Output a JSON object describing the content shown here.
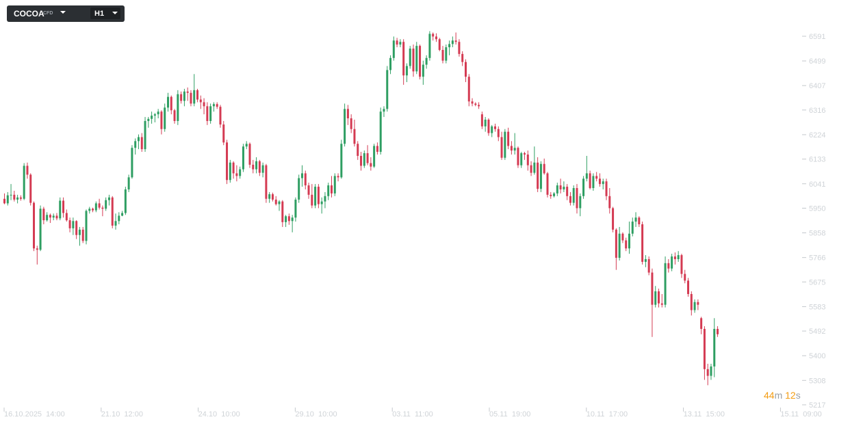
{
  "toolbar": {
    "symbol": "COCOA",
    "symbol_tag": "CFD",
    "timeframe": "H1"
  },
  "timer": {
    "minutes": "44",
    "min_unit": "m",
    "seconds": "12",
    "sec_unit": "s"
  },
  "colors": {
    "up": "#2e9e62",
    "down": "#d43a52",
    "axis_text": "#cfd3d7",
    "timer": "#f39c12"
  },
  "chart_data": {
    "type": "candlestick",
    "title": "",
    "y_ticks": [
      6591,
      6499,
      6407,
      6316,
      6224,
      6133,
      6041,
      5950,
      5858,
      5766,
      5675,
      5583,
      5492,
      5400,
      5308,
      5217
    ],
    "ylim": [
      5217,
      6591
    ],
    "x_ticks": [
      "16.10.2025  14:00",
      "21.10  12:00",
      "24.10  10:00",
      "29.10  10:00",
      "03.11  11:00",
      "05.11  19:00",
      "10.11  17:00",
      "13.11  15:00",
      "15.11  09:00"
    ],
    "grid": false,
    "candles": [
      [
        5985,
        6005,
        5965,
        5968
      ],
      [
        5968,
        6010,
        5960,
        5998
      ],
      [
        5998,
        6040,
        5980,
        6000
      ],
      [
        6000,
        6015,
        5975,
        5982
      ],
      [
        5982,
        6000,
        5968,
        5990
      ],
      [
        5990,
        5998,
        5978,
        5985
      ],
      [
        5985,
        6118,
        5980,
        6108
      ],
      [
        6108,
        6120,
        6060,
        6075
      ],
      [
        6075,
        6080,
        5960,
        5970
      ],
      [
        5970,
        5975,
        5790,
        5800
      ],
      [
        5800,
        5810,
        5740,
        5795
      ],
      [
        5795,
        5960,
        5790,
        5948
      ],
      [
        5948,
        5955,
        5890,
        5905
      ],
      [
        5905,
        5935,
        5900,
        5925
      ],
      [
        5925,
        5930,
        5895,
        5915
      ],
      [
        5915,
        5930,
        5905,
        5922
      ],
      [
        5922,
        5932,
        5905,
        5912
      ],
      [
        5912,
        5990,
        5905,
        5978
      ],
      [
        5978,
        5990,
        5915,
        5932
      ],
      [
        5932,
        5945,
        5900,
        5905
      ],
      [
        5905,
        5915,
        5860,
        5875
      ],
      [
        5875,
        5915,
        5850,
        5902
      ],
      [
        5902,
        5905,
        5835,
        5850
      ],
      [
        5850,
        5880,
        5810,
        5870
      ],
      [
        5870,
        5880,
        5820,
        5828
      ],
      [
        5828,
        5945,
        5815,
        5940
      ],
      [
        5940,
        5955,
        5930,
        5948
      ],
      [
        5948,
        5952,
        5935,
        5942
      ],
      [
        5942,
        5975,
        5935,
        5968
      ],
      [
        5968,
        5985,
        5945,
        5952
      ],
      [
        5952,
        5960,
        5920,
        5948
      ],
      [
        5948,
        5990,
        5940,
        5980
      ],
      [
        5980,
        6000,
        5960,
        5990
      ],
      [
        5990,
        5995,
        5875,
        5885
      ],
      [
        5885,
        5930,
        5870,
        5902
      ],
      [
        5902,
        5935,
        5890,
        5922
      ],
      [
        5922,
        5940,
        5920,
        5932
      ],
      [
        5932,
        6030,
        5925,
        6020
      ],
      [
        6020,
        6075,
        6010,
        6065
      ],
      [
        6065,
        6185,
        6060,
        6175
      ],
      [
        6175,
        6210,
        6150,
        6200
      ],
      [
        6200,
        6225,
        6170,
        6215
      ],
      [
        6215,
        6230,
        6160,
        6170
      ],
      [
        6170,
        6290,
        6160,
        6275
      ],
      [
        6275,
        6290,
        6250,
        6283
      ],
      [
        6283,
        6310,
        6265,
        6295
      ],
      [
        6295,
        6305,
        6270,
        6300
      ],
      [
        6300,
        6320,
        6285,
        6310
      ],
      [
        6310,
        6315,
        6225,
        6245
      ],
      [
        6245,
        6340,
        6235,
        6325
      ],
      [
        6325,
        6380,
        6310,
        6365
      ],
      [
        6365,
        6370,
        6300,
        6315
      ],
      [
        6315,
        6320,
        6265,
        6275
      ],
      [
        6275,
        6390,
        6260,
        6375
      ],
      [
        6375,
        6385,
        6340,
        6350
      ],
      [
        6350,
        6395,
        6330,
        6385
      ],
      [
        6385,
        6400,
        6350,
        6380
      ],
      [
        6380,
        6390,
        6330,
        6340
      ],
      [
        6340,
        6450,
        6330,
        6390
      ],
      [
        6390,
        6395,
        6345,
        6355
      ],
      [
        6355,
        6370,
        6320,
        6345
      ],
      [
        6345,
        6360,
        6300,
        6330
      ],
      [
        6330,
        6345,
        6260,
        6275
      ],
      [
        6275,
        6340,
        6265,
        6330
      ],
      [
        6330,
        6345,
        6310,
        6338
      ],
      [
        6338,
        6345,
        6320,
        6328
      ],
      [
        6328,
        6335,
        6250,
        6262
      ],
      [
        6262,
        6275,
        6185,
        6195
      ],
      [
        6195,
        6205,
        6040,
        6055
      ],
      [
        6055,
        6130,
        6045,
        6120
      ],
      [
        6120,
        6125,
        6060,
        6080
      ],
      [
        6080,
        6110,
        6050,
        6070
      ],
      [
        6070,
        6105,
        6060,
        6095
      ],
      [
        6095,
        6190,
        6085,
        6180
      ],
      [
        6180,
        6200,
        6170,
        6190
      ],
      [
        6190,
        6195,
        6100,
        6112
      ],
      [
        6112,
        6130,
        6080,
        6095
      ],
      [
        6095,
        6140,
        6080,
        6125
      ],
      [
        6125,
        6130,
        6070,
        6082
      ],
      [
        6082,
        6120,
        6065,
        6110
      ],
      [
        6110,
        6115,
        5970,
        5985
      ],
      [
        5985,
        6010,
        5970,
        6002
      ],
      [
        6002,
        6008,
        5975,
        5982
      ],
      [
        5982,
        5995,
        5960,
        5965
      ],
      [
        5965,
        5980,
        5940,
        5975
      ],
      [
        5975,
        5980,
        5880,
        5898
      ],
      [
        5898,
        5925,
        5880,
        5920
      ],
      [
        5920,
        5930,
        5888,
        5902
      ],
      [
        5902,
        5925,
        5860,
        5915
      ],
      [
        5915,
        5990,
        5900,
        5982
      ],
      [
        5982,
        6075,
        5970,
        6062
      ],
      [
        6062,
        6110,
        6030,
        6080
      ],
      [
        6080,
        6090,
        6020,
        6035
      ],
      [
        6035,
        6045,
        5985,
        6000
      ],
      [
        6000,
        6040,
        5950,
        5960
      ],
      [
        5960,
        6040,
        5950,
        6030
      ],
      [
        6030,
        6040,
        5950,
        5965
      ],
      [
        5965,
        5990,
        5930,
        5975
      ],
      [
        5975,
        6010,
        5950,
        5995
      ],
      [
        5995,
        6045,
        5980,
        6035
      ],
      [
        6035,
        6070,
        5990,
        6005
      ],
      [
        6005,
        6080,
        5995,
        6070
      ],
      [
        6070,
        6080,
        6050,
        6065
      ],
      [
        6065,
        6205,
        6060,
        6190
      ],
      [
        6190,
        6340,
        6180,
        6320
      ],
      [
        6320,
        6335,
        6260,
        6285
      ],
      [
        6285,
        6300,
        6230,
        6245
      ],
      [
        6245,
        6280,
        6180,
        6190
      ],
      [
        6190,
        6200,
        6130,
        6145
      ],
      [
        6145,
        6160,
        6090,
        6108
      ],
      [
        6108,
        6165,
        6100,
        6155
      ],
      [
        6155,
        6185,
        6110,
        6118
      ],
      [
        6118,
        6140,
        6090,
        6105
      ],
      [
        6105,
        6190,
        6100,
        6182
      ],
      [
        6182,
        6195,
        6150,
        6160
      ],
      [
        6160,
        6325,
        6150,
        6310
      ],
      [
        6310,
        6330,
        6290,
        6320
      ],
      [
        6320,
        6480,
        6310,
        6465
      ],
      [
        6465,
        6520,
        6450,
        6510
      ],
      [
        6510,
        6590,
        6500,
        6575
      ],
      [
        6575,
        6585,
        6550,
        6560
      ],
      [
        6560,
        6580,
        6550,
        6570
      ],
      [
        6570,
        6580,
        6410,
        6445
      ],
      [
        6445,
        6490,
        6420,
        6480
      ],
      [
        6480,
        6555,
        6470,
        6545
      ],
      [
        6545,
        6560,
        6440,
        6460
      ],
      [
        6460,
        6570,
        6450,
        6555
      ],
      [
        6555,
        6560,
        6430,
        6440
      ],
      [
        6440,
        6500,
        6410,
        6485
      ],
      [
        6485,
        6520,
        6470,
        6510
      ],
      [
        6510,
        6610,
        6500,
        6600
      ],
      [
        6600,
        6605,
        6575,
        6590
      ],
      [
        6590,
        6602,
        6570,
        6580
      ],
      [
        6580,
        6585,
        6535,
        6540
      ],
      [
        6540,
        6555,
        6490,
        6500
      ],
      [
        6500,
        6560,
        6490,
        6550
      ],
      [
        6550,
        6575,
        6520,
        6562
      ],
      [
        6562,
        6590,
        6550,
        6575
      ],
      [
        6575,
        6605,
        6560,
        6570
      ],
      [
        6570,
        6580,
        6515,
        6525
      ],
      [
        6525,
        6535,
        6480,
        6495
      ],
      [
        6495,
        6505,
        6420,
        6440
      ],
      [
        6440,
        6450,
        6330,
        6348
      ],
      [
        6348,
        6360,
        6330,
        6340
      ],
      [
        6340,
        6345,
        6330,
        6335
      ],
      [
        6335,
        6345,
        6320,
        6330
      ],
      [
        6300,
        6310,
        6245,
        6255
      ],
      [
        6255,
        6290,
        6235,
        6280
      ],
      [
        6280,
        6285,
        6220,
        6230
      ],
      [
        6230,
        6260,
        6215,
        6255
      ],
      [
        6255,
        6265,
        6235,
        6245
      ],
      [
        6245,
        6255,
        6200,
        6215
      ],
      [
        6215,
        6235,
        6130,
        6138
      ],
      [
        6138,
        6245,
        6130,
        6235
      ],
      [
        6235,
        6250,
        6170,
        6182
      ],
      [
        6182,
        6200,
        6150,
        6165
      ],
      [
        6165,
        6230,
        6150,
        6175
      ],
      [
        6175,
        6180,
        6100,
        6110
      ],
      [
        6110,
        6160,
        6100,
        6155
      ],
      [
        6155,
        6160,
        6130,
        6150
      ],
      [
        6150,
        6165,
        6090,
        6110
      ],
      [
        6110,
        6125,
        6070,
        6082
      ],
      [
        6082,
        6180,
        6075,
        6120
      ],
      [
        6120,
        6140,
        6010,
        6022
      ],
      [
        6022,
        6125,
        6010,
        6115
      ],
      [
        6115,
        6135,
        6075,
        6080
      ],
      [
        6080,
        6085,
        5990,
        6000
      ],
      [
        6000,
        6010,
        5985,
        5995
      ],
      [
        5995,
        6010,
        5990,
        6005
      ],
      [
        6005,
        6045,
        5995,
        6035
      ],
      [
        6035,
        6060,
        6005,
        6020
      ],
      [
        6020,
        6050,
        6010,
        6030
      ],
      [
        6030,
        6040,
        5980,
        5995
      ],
      [
        5995,
        6010,
        5960,
        5970
      ],
      [
        5970,
        6035,
        5960,
        6025
      ],
      [
        6025,
        6040,
        5930,
        5950
      ],
      [
        5950,
        6005,
        5920,
        5995
      ],
      [
        5995,
        6070,
        5985,
        6060
      ],
      [
        6060,
        6145,
        6050,
        6080
      ],
      [
        6080,
        6090,
        6020,
        6025
      ],
      [
        6025,
        6080,
        6015,
        6070
      ],
      [
        6070,
        6085,
        6050,
        6060
      ],
      [
        6060,
        6080,
        6030,
        6040
      ],
      [
        6040,
        6060,
        6020,
        6050
      ],
      [
        6050,
        6060,
        5980,
        5995
      ],
      [
        5995,
        6025,
        5930,
        5950
      ],
      [
        5950,
        5955,
        5860,
        5870
      ],
      [
        5870,
        5875,
        5720,
        5765
      ],
      [
        5765,
        5880,
        5755,
        5855
      ],
      [
        5855,
        5860,
        5820,
        5830
      ],
      [
        5830,
        5840,
        5790,
        5800
      ],
      [
        5800,
        5900,
        5780,
        5855
      ],
      [
        5855,
        5915,
        5845,
        5900
      ],
      [
        5900,
        5935,
        5880,
        5915
      ],
      [
        5915,
        5920,
        5880,
        5890
      ],
      [
        5890,
        5900,
        5740,
        5750
      ],
      [
        5750,
        5775,
        5730,
        5760
      ],
      [
        5760,
        5770,
        5700,
        5710
      ],
      [
        5710,
        5725,
        5470,
        5590
      ],
      [
        5590,
        5660,
        5580,
        5640
      ],
      [
        5640,
        5650,
        5580,
        5595
      ],
      [
        5595,
        5630,
        5580,
        5590
      ],
      [
        5590,
        5770,
        5580,
        5745
      ],
      [
        5745,
        5760,
        5710,
        5725
      ],
      [
        5725,
        5780,
        5715,
        5770
      ],
      [
        5770,
        5785,
        5740,
        5760
      ],
      [
        5760,
        5790,
        5750,
        5775
      ],
      [
        5775,
        5780,
        5690,
        5705
      ],
      [
        5705,
        5720,
        5670,
        5680
      ],
      [
        5680,
        5690,
        5620,
        5630
      ],
      [
        5630,
        5640,
        5550,
        5570
      ],
      [
        5570,
        5610,
        5560,
        5600
      ],
      [
        5600,
        5610,
        5570,
        5590
      ],
      [
        5540,
        5545,
        5480,
        5500
      ],
      [
        5500,
        5510,
        5310,
        5350
      ],
      [
        5350,
        5370,
        5290,
        5325
      ],
      [
        5325,
        5370,
        5310,
        5360
      ],
      [
        5360,
        5540,
        5320,
        5500
      ],
      [
        5500,
        5510,
        5470,
        5480
      ]
    ]
  }
}
